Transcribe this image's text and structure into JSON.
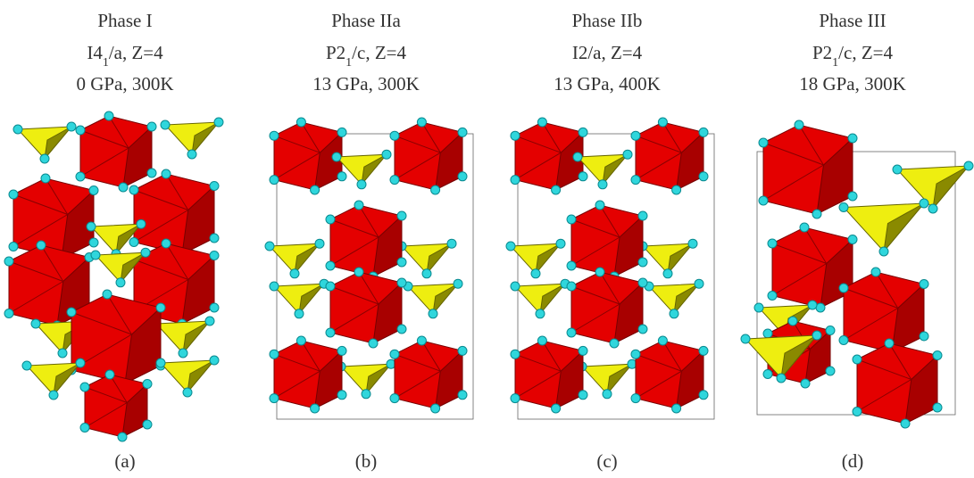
{
  "panels": [
    {
      "title": "Phase I",
      "space_group": [
        {
          "text": "I4"
        },
        {
          "text": "1",
          "sub": true
        },
        {
          "text": "/a, Z=4"
        }
      ],
      "conditions": "0 GPa, 300K",
      "label": "(a)"
    },
    {
      "title": "Phase IIa",
      "space_group": [
        {
          "text": "P2"
        },
        {
          "text": "1",
          "sub": true
        },
        {
          "text": "/c, Z=4"
        }
      ],
      "conditions": "13 GPa, 300K",
      "label": "(b)"
    },
    {
      "title": "Phase IIb",
      "space_group": [
        {
          "text": "I2/a, Z=4"
        }
      ],
      "conditions": "13 GPa, 400K",
      "label": "(c)"
    },
    {
      "title": "Phase III",
      "space_group": [
        {
          "text": "P2"
        },
        {
          "text": "1",
          "sub": true
        },
        {
          "text": "/c, Z=4"
        }
      ],
      "conditions": "18 GPa, 300K",
      "label": "(d)"
    }
  ]
}
